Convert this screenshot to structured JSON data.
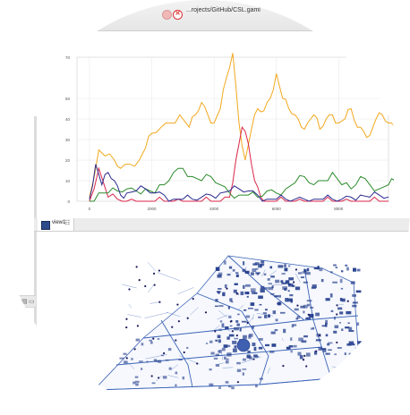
{
  "window": {
    "title": "...rojects/GitHub/CSL.gaml",
    "close_glyph": "✕"
  },
  "view": {
    "tab_label": "view1",
    "tab_close": "☷"
  },
  "chart_data": {
    "type": "line",
    "title": "",
    "xlabel": "",
    "ylabel": "",
    "ylim": [
      0,
      70
    ],
    "xlim": [
      0,
      10000
    ],
    "y_ticks": [
      "0",
      "10",
      "20",
      "30",
      "40",
      "50",
      "70"
    ],
    "x_ticks": [
      "0",
      "2000",
      "4000",
      "6000",
      "8000"
    ],
    "series": [
      {
        "name": "orange",
        "color": "#f2a81d",
        "x": [
          0,
          300,
          500,
          800,
          1000,
          1300,
          1600,
          1800,
          2000,
          2300,
          2600,
          2900,
          3200,
          3400,
          3600,
          3800,
          4000,
          4200,
          4400,
          4600,
          4800,
          5000,
          5200,
          5400,
          5600,
          5800,
          6000,
          6200,
          6400,
          6600,
          6800,
          7000,
          7200,
          7400,
          7600,
          7800,
          8000,
          8200,
          8400,
          8600,
          8800,
          9000,
          9200,
          9400,
          9600,
          9800
        ],
        "y": [
          2,
          25,
          22,
          20,
          16,
          18,
          20,
          26,
          33,
          36,
          38,
          42,
          36,
          42,
          48,
          42,
          38,
          45,
          60,
          72,
          38,
          20,
          35,
          45,
          44,
          50,
          62,
          50,
          45,
          42,
          36,
          38,
          42,
          35,
          40,
          42,
          38,
          40,
          45,
          36,
          34,
          32,
          40,
          42,
          38,
          36
        ]
      },
      {
        "name": "red",
        "color": "#d9264a",
        "x": [
          0,
          300,
          600,
          900,
          1200,
          1500,
          1800,
          2100,
          2400,
          2700,
          3000,
          3300,
          3600,
          3900,
          4200,
          4500,
          4700,
          4900,
          5100,
          5300,
          5500,
          5700,
          6000,
          6300,
          6600,
          6900,
          7200,
          7500,
          7800,
          8100,
          8400,
          8700,
          9000,
          9300,
          9600
        ],
        "y": [
          0,
          16,
          2,
          1,
          0,
          0,
          0,
          0,
          0,
          0,
          0,
          0,
          0,
          0,
          0,
          2,
          20,
          36,
          28,
          10,
          2,
          0,
          0,
          0,
          0,
          0,
          0,
          0,
          0,
          0,
          0,
          0,
          0,
          0,
          0
        ]
      },
      {
        "name": "green",
        "color": "#2a8a2a",
        "x": [
          0,
          300,
          600,
          900,
          1200,
          1500,
          1800,
          2100,
          2400,
          2700,
          3000,
          3300,
          3600,
          3900,
          4200,
          4500,
          4800,
          5100,
          5400,
          5700,
          6000,
          6300,
          6600,
          6900,
          7200,
          7500,
          7800,
          8100,
          8400,
          8700,
          9000,
          9300,
          9600,
          9800
        ],
        "y": [
          0,
          4,
          4,
          5,
          6,
          5,
          6,
          4,
          8,
          14,
          16,
          12,
          10,
          12,
          8,
          4,
          3,
          3,
          2,
          5,
          4,
          6,
          9,
          12,
          8,
          10,
          14,
          8,
          6,
          12,
          8,
          6,
          8,
          10
        ]
      },
      {
        "name": "navy",
        "color": "#2b2a8f",
        "x": [
          0,
          200,
          400,
          600,
          800,
          1000,
          1200,
          1500,
          1800,
          2100,
          2400,
          2700,
          3000,
          3300,
          3600,
          3900,
          4200,
          4500,
          4800,
          5100,
          5400,
          5700,
          6000,
          6300,
          6600,
          6900,
          7200,
          7500,
          7800,
          8100,
          8400,
          8700,
          9000,
          9300,
          9600
        ],
        "y": [
          1,
          18,
          8,
          14,
          10,
          3,
          4,
          5,
          6,
          4,
          3,
          1,
          1,
          1,
          2,
          3,
          4,
          5,
          6,
          5,
          3,
          1,
          1,
          1,
          1,
          1,
          1,
          1,
          1,
          1,
          2,
          3,
          2,
          3,
          2
        ]
      }
    ]
  },
  "legend_colors": [
    "#f6e27a",
    "#f2d13a",
    "#9ad34b",
    "#4cb04c",
    "#2a8a2a",
    "#1f6f7a"
  ],
  "map_colors": {
    "roads": "#3c64b8",
    "buildings": "#1f3a8a",
    "agents": "#1a1a5e"
  }
}
